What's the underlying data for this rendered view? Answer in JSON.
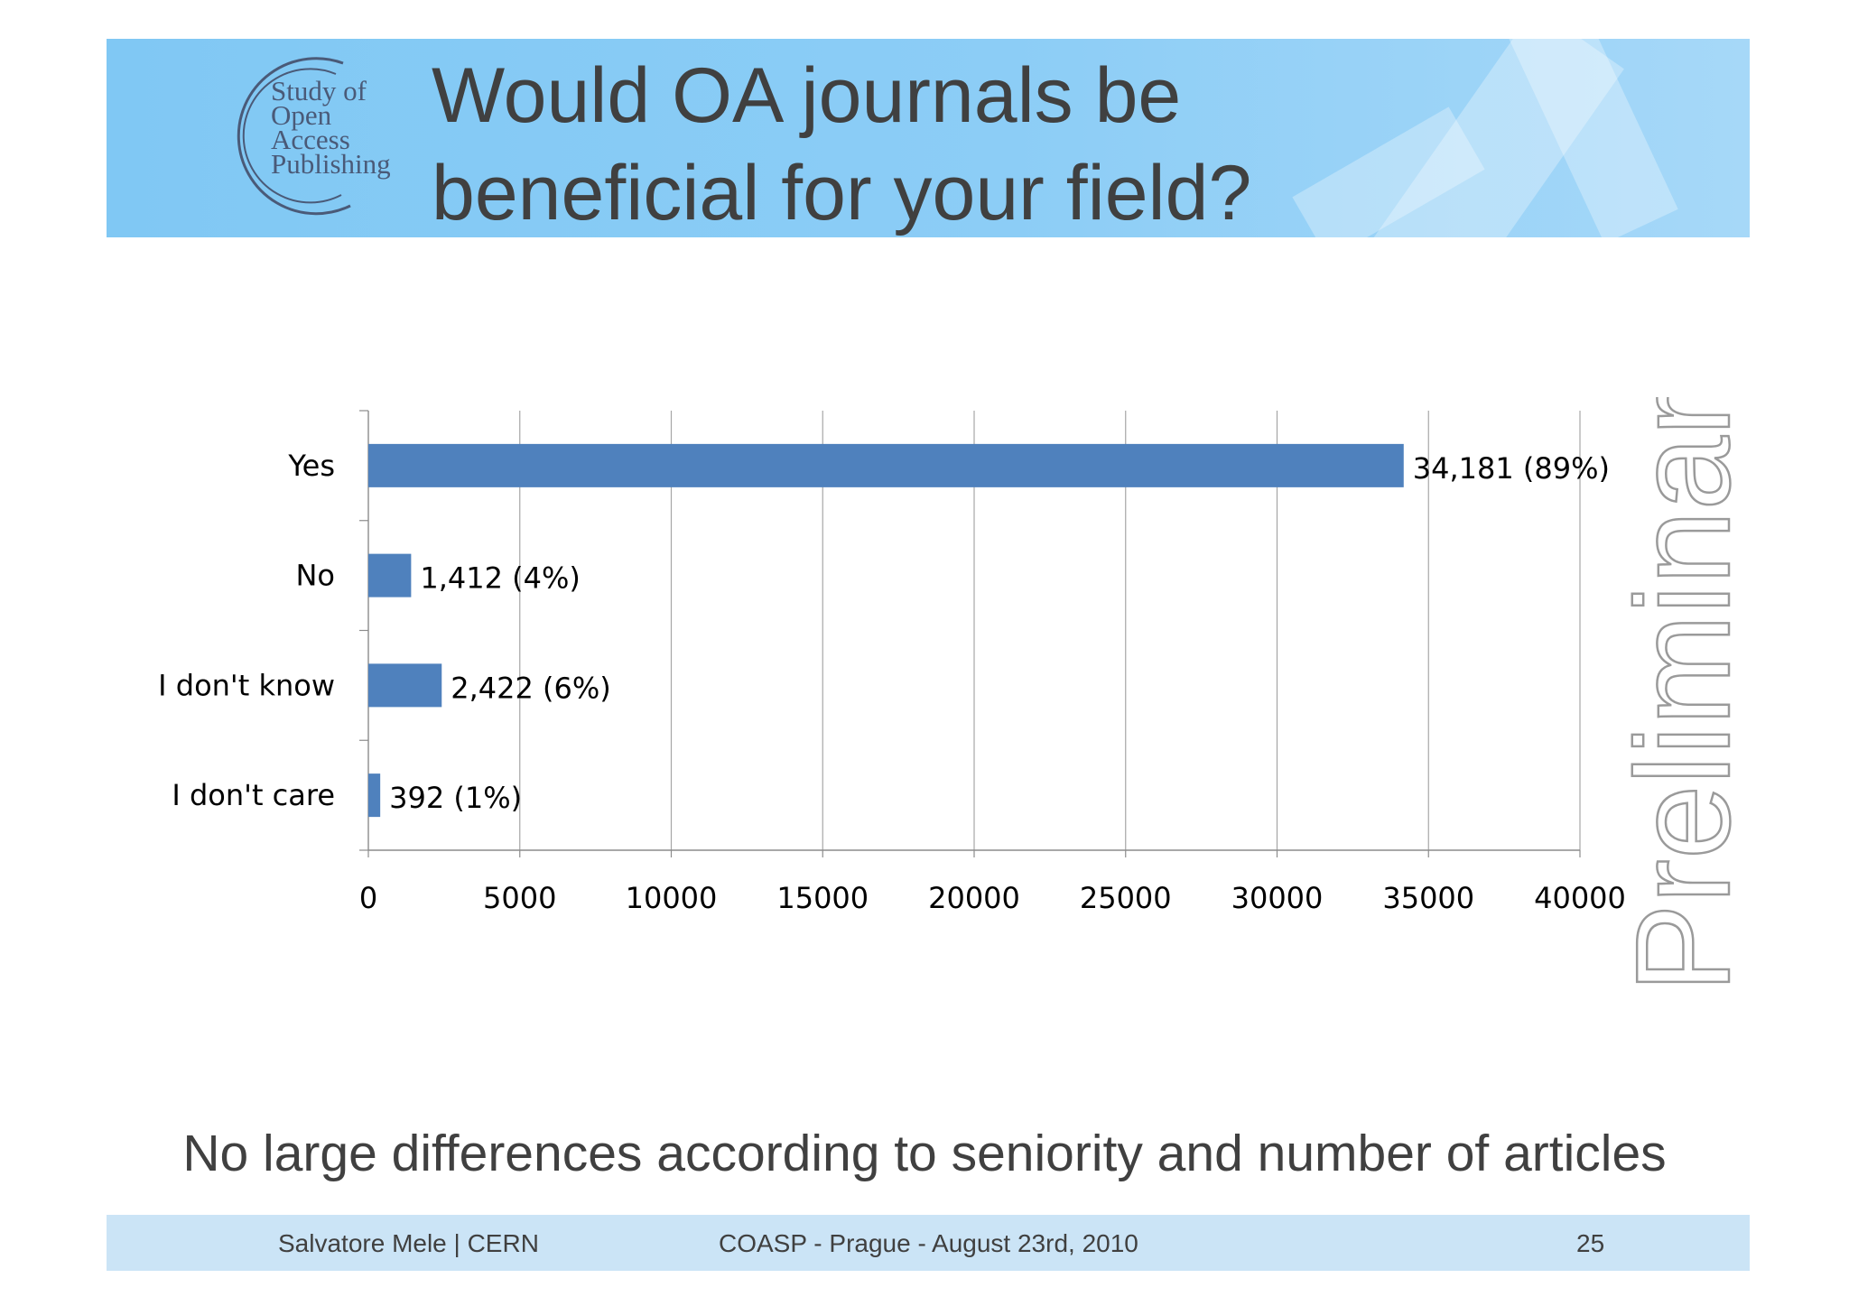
{
  "slide": {
    "title_line1": "Would OA journals be",
    "title_line2": "beneficial for your field?",
    "logo": {
      "lines": [
        "Study of",
        "Open",
        "Access",
        "Publishing"
      ]
    },
    "watermark": "Preliminary",
    "summary": "No large differences according to seniority and number of articles",
    "footer": {
      "author": "Salvatore Mele | CERN",
      "event": "COASP - Prague - August 23rd, 2010",
      "page": "25"
    }
  },
  "chart_data": {
    "type": "bar",
    "orientation": "horizontal",
    "categories": [
      "Yes",
      "No",
      "I don't know",
      "I don't care"
    ],
    "values": [
      34181,
      1412,
      2422,
      392
    ],
    "data_labels": [
      "34,181  (89%)",
      "1,412  (4%)",
      "2,422  (6%)",
      "392  (1%)"
    ],
    "xlim": [
      0,
      40000
    ],
    "xticks": [
      0,
      5000,
      10000,
      15000,
      20000,
      25000,
      30000,
      35000,
      40000
    ],
    "xtick_labels": [
      "0",
      "5000",
      "10000",
      "15000",
      "20000",
      "25000",
      "30000",
      "35000",
      "40000"
    ],
    "grid": true,
    "bar_color": "#4f81bd"
  }
}
